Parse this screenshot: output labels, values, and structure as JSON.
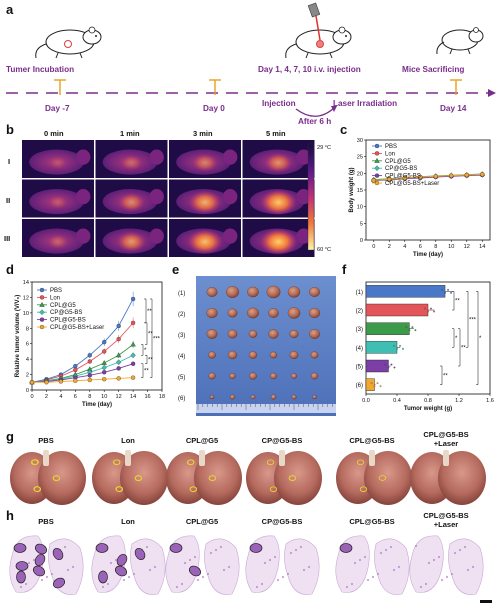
{
  "panels": {
    "a": "a",
    "b": "b",
    "c": "c",
    "d": "d",
    "e": "e",
    "f": "f",
    "g": "g",
    "h": "h"
  },
  "timeline": {
    "tumer_incubation": "Tumer Incubation",
    "day_m7": "Day -7",
    "day_0": "Day 0",
    "injection_days": "Day 1, 4, 7, 10 i.v. injection",
    "mice_sacrificing": "Mice Sacrificing",
    "injection": "Injection",
    "laser_irradiation": "Laser Irradiation",
    "after_6h": "After 6 h",
    "day_14": "Day 14"
  },
  "thermal": {
    "columns": [
      "0 min",
      "1 min",
      "3 min",
      "5 min"
    ],
    "rows": [
      "I",
      "II",
      "III"
    ],
    "colorbar_max": "29 °C",
    "colorbar_min": "60 °C"
  },
  "groups": [
    "PBS",
    "Lon",
    "CPL@G5",
    "CP@G5-BS",
    "CPL@G5-BS",
    "CPL@G5-BS+Laser"
  ],
  "colors": [
    "#4a78c9",
    "#e2565a",
    "#3c9b4a",
    "#3fbfb3",
    "#7b3fa5",
    "#f0a830"
  ],
  "markers": [
    "circle",
    "circle",
    "triangle",
    "diamond",
    "circle",
    "circle"
  ],
  "chart_c": {
    "type": "line",
    "xlabel": "Time (day)",
    "ylabel": "Body weight (g)",
    "xlim": [
      -1,
      15
    ],
    "ylim": [
      0,
      30
    ],
    "xticks": [
      "0",
      "2",
      "4",
      "6",
      "8",
      "10",
      "12",
      "14"
    ],
    "yticks": [
      "0",
      "5",
      "10",
      "15",
      "20",
      "25",
      "30"
    ],
    "x": [
      0,
      2,
      4,
      6,
      8,
      10,
      12,
      14
    ],
    "series": [
      {
        "name": "PBS",
        "values": [
          18,
          18.3,
          18.6,
          18.9,
          19.1,
          19.3,
          19.5,
          19.7
        ]
      },
      {
        "name": "Lon",
        "values": [
          17.9,
          18.1,
          18.5,
          18.7,
          19.0,
          19.3,
          19.5,
          19.6
        ]
      },
      {
        "name": "CPL@G5",
        "values": [
          18.1,
          18.4,
          18.7,
          19.0,
          19.2,
          19.4,
          19.6,
          19.8
        ]
      },
      {
        "name": "CP@G5-BS",
        "values": [
          18.0,
          18.2,
          18.5,
          18.8,
          19.0,
          19.2,
          19.4,
          19.6
        ]
      },
      {
        "name": "CPL@G5-BS",
        "values": [
          17.8,
          18.0,
          18.4,
          18.6,
          18.9,
          19.1,
          19.3,
          19.5
        ]
      },
      {
        "name": "CPL@G5-BS+Laser",
        "values": [
          17.9,
          18.2,
          18.6,
          18.9,
          19.1,
          19.3,
          19.5,
          19.7
        ]
      }
    ]
  },
  "chart_d": {
    "type": "line",
    "xlabel": "Time (day)",
    "ylabel": "Relative tumor volume (V/V₀)",
    "xlim": [
      0,
      18
    ],
    "ylim": [
      0,
      14
    ],
    "xticks": [
      "0",
      "2",
      "4",
      "6",
      "8",
      "10",
      "12",
      "14",
      "16",
      "18"
    ],
    "yticks": [
      "0",
      "2",
      "4",
      "6",
      "8",
      "10",
      "12",
      "14"
    ],
    "x": [
      0,
      2,
      4,
      6,
      8,
      10,
      12,
      14
    ],
    "series": [
      {
        "name": "PBS",
        "values": [
          1,
          1.4,
          2.0,
          3.1,
          4.5,
          6.2,
          8.3,
          11.8
        ]
      },
      {
        "name": "Lon",
        "values": [
          1,
          1.3,
          1.8,
          2.6,
          3.7,
          5.0,
          6.6,
          8.7
        ]
      },
      {
        "name": "CPL@G5",
        "values": [
          1,
          1.2,
          1.5,
          2.0,
          2.7,
          3.5,
          4.5,
          5.9
        ]
      },
      {
        "name": "CP@G5-BS",
        "values": [
          1,
          1.2,
          1.4,
          1.8,
          2.3,
          2.9,
          3.6,
          4.5
        ]
      },
      {
        "name": "CPL@G5-BS",
        "values": [
          1,
          1.1,
          1.3,
          1.6,
          1.9,
          2.3,
          2.8,
          3.4
        ]
      },
      {
        "name": "CPL@G5-BS+Laser",
        "values": [
          1,
          1.0,
          1.1,
          1.2,
          1.3,
          1.4,
          1.5,
          1.6
        ]
      }
    ],
    "sig": [
      "**",
      "***",
      "**",
      "*",
      "**",
      "**"
    ]
  },
  "chart_f": {
    "type": "bar",
    "xlabel": "Tumor weight (g)",
    "xlim": [
      0,
      1.6
    ],
    "xticks": [
      "0.0",
      "0.4",
      "0.8",
      "1.2",
      "1.6"
    ],
    "categories": [
      "(1)",
      "(2)",
      "(3)",
      "(4)",
      "(5)",
      "(6)"
    ],
    "values": [
      1.02,
      0.8,
      0.56,
      0.4,
      0.29,
      0.11
    ],
    "sig": [
      "**",
      "*",
      "***",
      "*",
      "**",
      "**",
      "**"
    ]
  },
  "tumor_rows": [
    "(1)",
    "(2)",
    "(3)",
    "(4)",
    "(5)",
    "(6)"
  ],
  "lungs": {
    "groups": [
      "PBS",
      "Lon",
      "CPL@G5",
      "CP@G5-BS",
      "CPL@G5-BS",
      "CPL@G5-BS\n+Laser"
    ]
  }
}
